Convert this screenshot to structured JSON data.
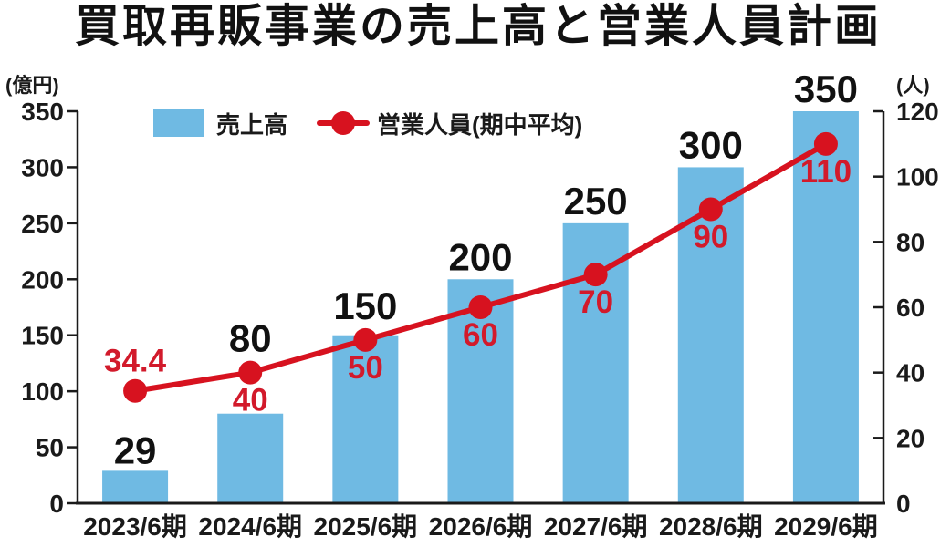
{
  "title": "買取再販事業の売上高と営業人員計画",
  "left_axis_unit": "(億円)",
  "right_axis_unit": "(人)",
  "legend": {
    "bar_label": "売上高",
    "line_label": "営業人員(期中平均)"
  },
  "colors": {
    "bar": "#6FBAE3",
    "line": "#D7121F",
    "red_label": "#D21A2B",
    "text": "#1a1a1a",
    "axis": "#1a1a1a",
    "background": "#FFFFFF"
  },
  "chart_data": {
    "type": "bar",
    "subtype": "bar+line combo, dual axis",
    "title": "買取再販事業の売上高と営業人員計画",
    "categories": [
      "2023/6期",
      "2024/6期",
      "2025/6期",
      "2026/6期",
      "2027/6期",
      "2028/6期",
      "2029/6期"
    ],
    "series": [
      {
        "name": "売上高",
        "type": "bar",
        "axis": "left",
        "unit": "億円",
        "color": "#6FBAE3",
        "values": [
          29,
          80,
          150,
          200,
          250,
          300,
          350
        ]
      },
      {
        "name": "営業人員(期中平均)",
        "type": "line",
        "axis": "right",
        "unit": "人",
        "color": "#D7121F",
        "values": [
          34.4,
          40,
          50,
          60,
          70,
          90,
          110
        ]
      }
    ],
    "left_axis": {
      "label": "(億円)",
      "min": 0,
      "max": 350,
      "step": 50,
      "ticks": [
        0,
        50,
        100,
        150,
        200,
        250,
        300,
        350
      ]
    },
    "right_axis": {
      "label": "(人)",
      "min": 0,
      "max": 120,
      "step": 20,
      "ticks": [
        0,
        20,
        40,
        60,
        80,
        100,
        120
      ]
    },
    "grid": false,
    "legend_position": "top-left inside plot",
    "data_labels": "shown: black labels for bars, red labels for line points"
  }
}
